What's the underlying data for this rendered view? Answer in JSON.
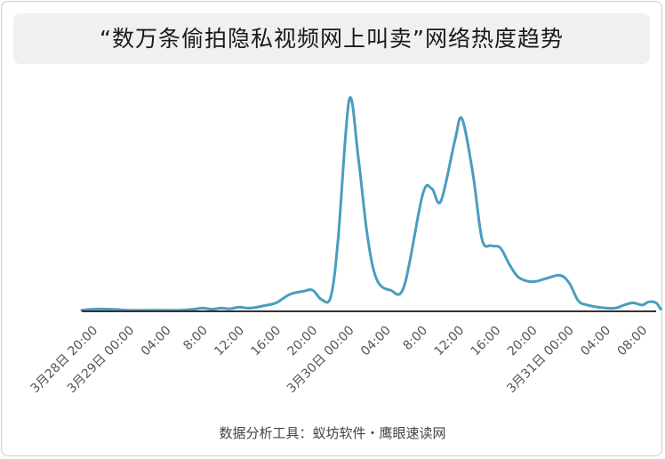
{
  "title": "“数万条偷拍隐私视频网上叫卖”网络热度趋势",
  "footer": "数据分析工具：蚁坊软件・鹰眼速读网",
  "colors": {
    "line": "#4a9dbf",
    "axis": "#333333",
    "text": "#555555"
  },
  "chart_data": {
    "type": "line",
    "title": "“数万条偷拍隐私视频网上叫卖”网络热度趋势",
    "xlabel": "",
    "ylabel": "",
    "x_ticks": [
      {
        "h": 0,
        "label": "3月28日 20:00"
      },
      {
        "h": 4,
        "label": "3月29日 00:00"
      },
      {
        "h": 8,
        "label": "04:00"
      },
      {
        "h": 12,
        "label": "8:00"
      },
      {
        "h": 16,
        "label": "12:00"
      },
      {
        "h": 20,
        "label": "16:00"
      },
      {
        "h": 24,
        "label": "20:00"
      },
      {
        "h": 28,
        "label": "3月30日 00:00"
      },
      {
        "h": 32,
        "label": "04:00"
      },
      {
        "h": 36,
        "label": "8:00"
      },
      {
        "h": 40,
        "label": "12:00"
      },
      {
        "h": 44,
        "label": "16:00"
      },
      {
        "h": 48,
        "label": "20:00"
      },
      {
        "h": 52,
        "label": "3月31日 00:00"
      },
      {
        "h": 56,
        "label": "04:00"
      },
      {
        "h": 60,
        "label": "08:00"
      }
    ],
    "xlim": [
      -1.2,
      61.5
    ],
    "ylim": [
      0,
      100
    ],
    "series": [
      {
        "points": [
          [
            -1.2,
            0.5
          ],
          [
            0,
            1
          ],
          [
            2,
            1
          ],
          [
            4,
            0.5
          ],
          [
            6,
            0.5
          ],
          [
            8,
            0.5
          ],
          [
            9.5,
            0.5
          ],
          [
            11,
            1
          ],
          [
            12,
            1.5
          ],
          [
            13,
            1
          ],
          [
            14,
            1.5
          ],
          [
            15,
            1.2
          ],
          [
            16,
            2
          ],
          [
            16.8,
            1.5
          ],
          [
            17.5,
            1.7
          ],
          [
            18.5,
            2.5
          ],
          [
            20,
            4
          ],
          [
            21.5,
            8
          ],
          [
            23,
            9.5
          ],
          [
            24,
            10
          ],
          [
            25,
            5.5
          ],
          [
            26,
            7
          ],
          [
            26.8,
            35
          ],
          [
            28,
            100
          ],
          [
            29,
            72
          ],
          [
            30,
            35
          ],
          [
            31,
            15
          ],
          [
            32.5,
            10
          ],
          [
            34,
            12
          ],
          [
            36,
            55
          ],
          [
            37,
            58
          ],
          [
            38,
            52
          ],
          [
            39.5,
            80
          ],
          [
            40.3,
            91
          ],
          [
            41.5,
            65
          ],
          [
            42.5,
            34
          ],
          [
            43.5,
            31
          ],
          [
            44.5,
            30
          ],
          [
            45.5,
            22
          ],
          [
            46.5,
            16
          ],
          [
            48,
            14
          ],
          [
            49.5,
            15.5
          ],
          [
            51,
            17
          ],
          [
            52,
            13.5
          ],
          [
            53,
            5
          ],
          [
            54,
            3
          ],
          [
            55.5,
            1.8
          ],
          [
            57,
            1.5
          ],
          [
            58,
            3
          ],
          [
            59,
            4
          ],
          [
            60,
            3
          ],
          [
            60.7,
            4.5
          ],
          [
            61.5,
            4
          ],
          [
            62,
            1
          ]
        ]
      }
    ],
    "grid": false
  }
}
